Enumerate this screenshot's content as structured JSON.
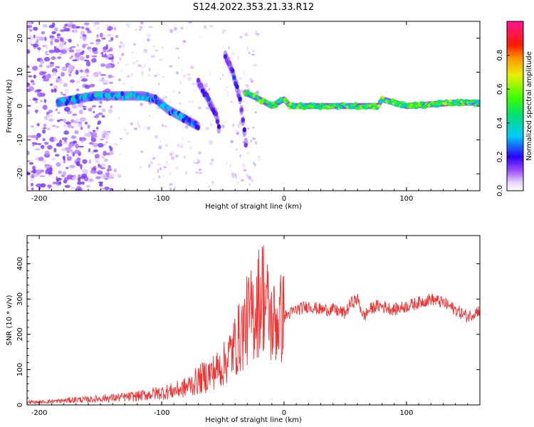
{
  "title": "S124.2022.353.21.33.R12",
  "chart_data": [
    {
      "type": "heatmap",
      "xlabel": "Height of straight line (km)",
      "ylabel": "Frequency (Hz)",
      "xlim": [
        -210,
        160
      ],
      "ylim": [
        -25,
        25
      ],
      "xticks": [
        -200,
        -100,
        0,
        100
      ],
      "yticks": [
        -20,
        -10,
        0,
        10,
        20
      ],
      "colorbar": {
        "label": "Normalized spectral amplitude",
        "range": [
          0,
          1
        ],
        "ticks": [
          "0.0",
          "0.2",
          "0.4",
          "0.6",
          "0.8"
        ],
        "tick_values": [
          0,
          0.2,
          0.4,
          0.6,
          0.8
        ],
        "colormap": "white-purple-blue-cyan-green-yellow-red-magenta"
      },
      "ridges": [
        {
          "x": [
            -185,
            -170,
            -155,
            -140,
            -125,
            -115,
            -105
          ],
          "y": [
            1,
            2,
            3,
            3,
            3,
            3,
            2
          ],
          "amplitude": 0.35
        },
        {
          "x": [
            -105,
            -95,
            -85,
            -75,
            -70
          ],
          "y": [
            2,
            -1,
            -3,
            -5,
            -6
          ],
          "amplitude": 0.3
        },
        {
          "x": [
            -70,
            -62,
            -55,
            -52
          ],
          "y": [
            7,
            2,
            -3,
            -9
          ],
          "amplitude": 0.2
        },
        {
          "x": [
            -48,
            -42,
            -36,
            -30
          ],
          "y": [
            15,
            10,
            2,
            -14
          ],
          "amplitude": 0.2
        },
        {
          "x": [
            -32,
            -20,
            -10,
            -5,
            0,
            5,
            20,
            60,
            77,
            80,
            100,
            140,
            160
          ],
          "y": [
            4,
            2,
            0,
            1,
            2,
            0,
            0,
            0,
            0,
            2,
            0,
            1,
            1
          ],
          "amplitude": 0.55
        }
      ]
    },
    {
      "type": "line",
      "xlabel": "Height of straight line (km)",
      "ylabel": "SNR (10 * v/v)",
      "xlim": [
        -210,
        160
      ],
      "ylim": [
        0,
        480
      ],
      "xticks": [
        -200,
        -100,
        0,
        100
      ],
      "yticks": [
        0,
        100,
        200,
        300,
        400
      ],
      "color": "#ee3333",
      "grid": false,
      "x": [
        -210,
        -200,
        -190,
        -180,
        -170,
        -160,
        -150,
        -140,
        -130,
        -120,
        -110,
        -100,
        -90,
        -80,
        -70,
        -60,
        -50,
        -45,
        -40,
        -35,
        -30,
        -25,
        -20,
        -18,
        -15,
        -12,
        -10,
        -5,
        0,
        5,
        10,
        20,
        30,
        40,
        50,
        55,
        60,
        65,
        70,
        75,
        80,
        90,
        100,
        110,
        120,
        130,
        140,
        150,
        160
      ],
      "values": [
        8,
        8,
        10,
        12,
        15,
        15,
        18,
        20,
        22,
        25,
        30,
        35,
        40,
        50,
        70,
        90,
        110,
        140,
        170,
        200,
        240,
        260,
        300,
        330,
        290,
        250,
        230,
        240,
        250,
        260,
        270,
        280,
        270,
        270,
        260,
        290,
        300,
        250,
        270,
        280,
        280,
        270,
        280,
        290,
        300,
        290,
        270,
        250,
        270
      ]
    }
  ]
}
